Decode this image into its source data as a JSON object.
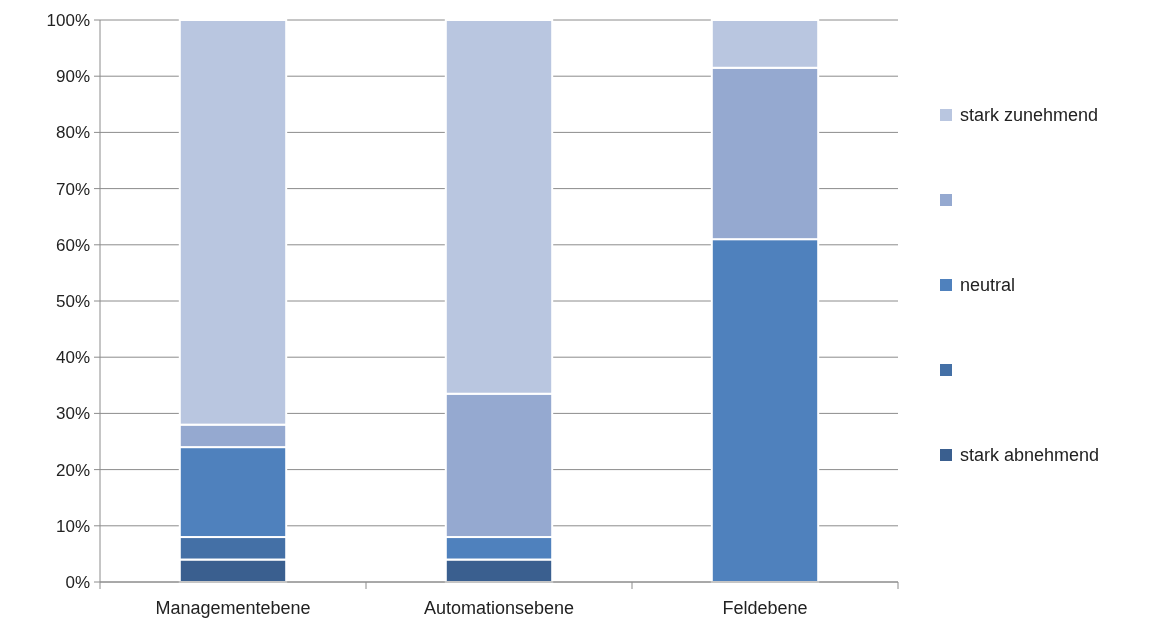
{
  "chart_data": {
    "type": "bar",
    "stacked": true,
    "categories": [
      "Managementebene",
      "Automationsebene",
      "Feldebene"
    ],
    "series": [
      {
        "name": "stark abnehmend",
        "color": "#3a5f8f",
        "values": [
          4,
          4,
          0
        ]
      },
      {
        "color": "#4470a6",
        "values": [
          4,
          0,
          0
        ]
      },
      {
        "name": "neutral",
        "color": "#4f81bd",
        "values": [
          16,
          4,
          61
        ]
      },
      {
        "color": "#95a9d0",
        "values": [
          4,
          25.5,
          30.5
        ]
      },
      {
        "name": "stark zunehmend",
        "color": "#b9c6e0",
        "values": [
          72,
          66.5,
          8.5
        ]
      }
    ],
    "ylim": [
      0,
      100
    ],
    "yticks": [
      {
        "value": 0,
        "label": "0%"
      },
      {
        "value": 10,
        "label": "10%"
      },
      {
        "value": 20,
        "label": "20%"
      },
      {
        "value": 30,
        "label": "30%"
      },
      {
        "value": 40,
        "label": "40%"
      },
      {
        "value": 50,
        "label": "50%"
      },
      {
        "value": 60,
        "label": "60%"
      },
      {
        "value": 70,
        "label": "70%"
      },
      {
        "value": 80,
        "label": "80%"
      },
      {
        "value": 90,
        "label": "90%"
      },
      {
        "value": 100,
        "label": "100%"
      }
    ],
    "grid": "y",
    "legend": "right"
  }
}
